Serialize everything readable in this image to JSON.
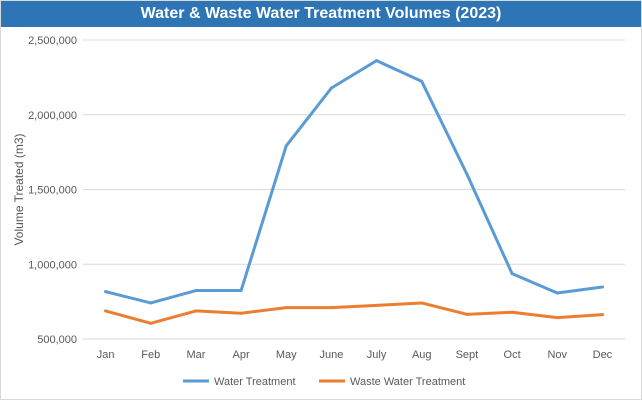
{
  "chart_data": {
    "type": "line",
    "title": "Water & Waste Water Treatment Volumes (2023)",
    "xlabel": "",
    "ylabel": "Volume Treated (m3)",
    "ylim": [
      500000,
      2500000
    ],
    "yticks": [
      "500,000",
      "1,000,000",
      "1,500,000",
      "2,000,000",
      "2,500,000"
    ],
    "ytick_values": [
      500000,
      1000000,
      1500000,
      2000000,
      2500000
    ],
    "categories": [
      "Jan",
      "Feb",
      "Mar",
      "Apr",
      "May",
      "June",
      "July",
      "Aug",
      "Sept",
      "Oct",
      "Nov",
      "Dec"
    ],
    "grid": true,
    "legend_position": "bottom",
    "series": [
      {
        "name": "Water Treatment",
        "color": "#5b9bd5",
        "values": [
          817000,
          741000,
          824000,
          824000,
          1792000,
          2179000,
          2362000,
          2223000,
          1603000,
          937000,
          808000,
          848000
        ]
      },
      {
        "name": "Waste Water Treatment",
        "color": "#ed7d31",
        "values": [
          688000,
          605000,
          688000,
          672000,
          710000,
          710000,
          725000,
          741000,
          665000,
          679000,
          643000,
          663000
        ]
      }
    ]
  }
}
